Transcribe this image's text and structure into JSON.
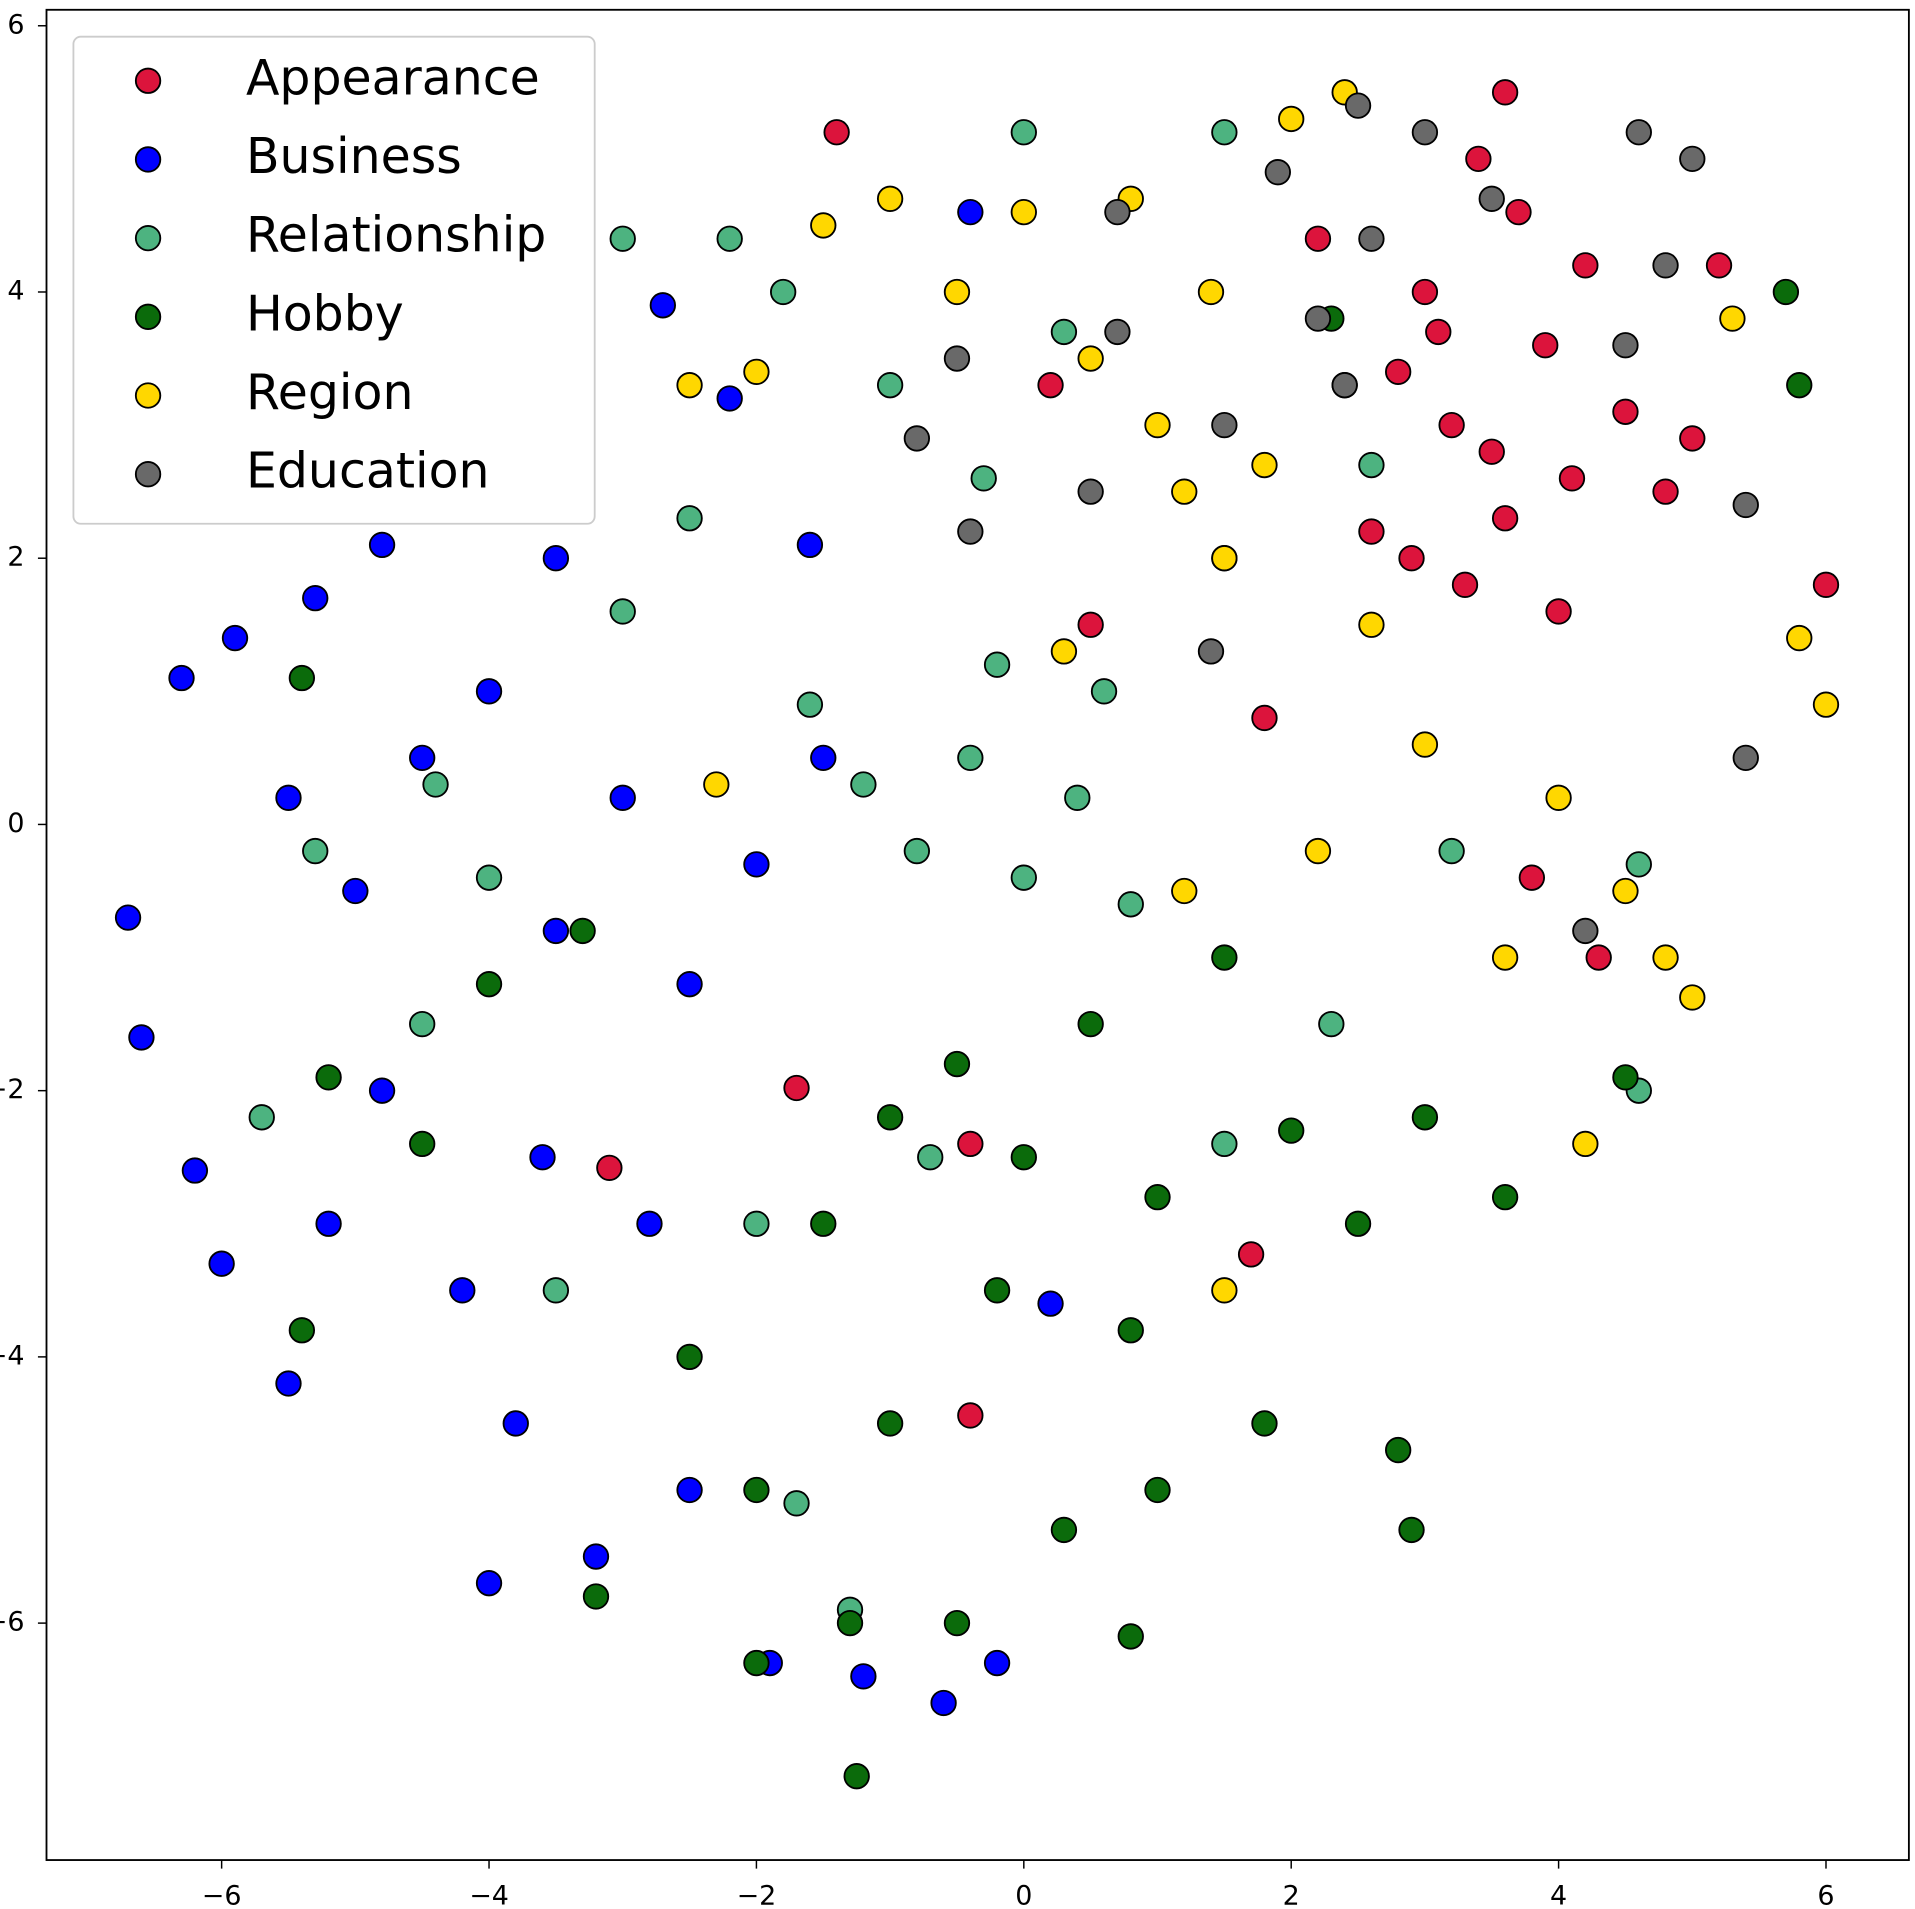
{
  "chart_data": {
    "type": "scatter",
    "xlim": [
      -7.31,
      6.62
    ],
    "ylim": [
      -7.78,
      6.12
    ],
    "xticks": [
      {
        "value": -6,
        "label": "−6"
      },
      {
        "value": -4,
        "label": "−4"
      },
      {
        "value": -2,
        "label": "−2"
      },
      0,
      2,
      4,
      6
    ],
    "yticks": [
      {
        "value": -6,
        "label": "−6"
      },
      {
        "value": -4,
        "label": "−4"
      },
      {
        "value": -2,
        "label": "−2"
      },
      0,
      2,
      4,
      6
    ],
    "legend": "upper left",
    "series": [
      {
        "name": "Appearance",
        "color": "#dc143c",
        "x": [
          3.2,
          3.5,
          2.8,
          4.1,
          3.9,
          2.6,
          3.0,
          4.5,
          3.3,
          2.4,
          4.8,
          3.7,
          2.9,
          4.2,
          3.1,
          5.0,
          2.2,
          3.6,
          4.0,
          3.4,
          1.5,
          1.8,
          0.5,
          0.2,
          3.8,
          4.3,
          6.0,
          5.2,
          -1.7,
          -0.4,
          -3.1,
          -0.4,
          1.7,
          3.6,
          -1.4
        ],
        "y": [
          3.0,
          2.8,
          3.4,
          2.6,
          3.6,
          2.2,
          4.0,
          3.1,
          1.8,
          3.3,
          2.5,
          4.6,
          2.0,
          4.2,
          3.7,
          2.9,
          4.4,
          2.3,
          1.6,
          5.0,
          2.0,
          0.8,
          1.5,
          3.3,
          -0.4,
          -1.0,
          1.8,
          4.2,
          -1.98,
          -2.4,
          -2.58,
          -4.44,
          -3.23,
          5.5,
          5.2
        ]
      },
      {
        "name": "Business",
        "color": "#0000ff",
        "x": [
          -6.6,
          -6.7,
          -6.3,
          -5.9,
          -5.5,
          -5.0,
          -4.5,
          -4.0,
          -3.5,
          -3.0,
          -2.5,
          -2.0,
          -1.5,
          -4.8,
          -5.2,
          -4.2,
          -3.8,
          -3.2,
          -2.5,
          -4.0,
          -1.9,
          -1.2,
          -0.6,
          -0.2,
          -5.5,
          -6.0,
          -6.2,
          -2.7,
          -3.5,
          -4.8,
          -2.2,
          -1.6,
          -0.4,
          -3.6,
          -2.8,
          0.2,
          -5.3
        ],
        "y": [
          -1.6,
          -0.7,
          1.1,
          1.4,
          0.2,
          -0.5,
          0.5,
          1.0,
          -0.8,
          0.2,
          -1.2,
          -0.3,
          0.5,
          -2.0,
          -3.0,
          -3.5,
          -4.5,
          -5.5,
          -5.0,
          -5.7,
          -6.3,
          -6.4,
          -6.6,
          -6.3,
          -4.2,
          -3.3,
          -2.6,
          3.9,
          2.0,
          2.1,
          3.2,
          2.1,
          4.6,
          -2.5,
          -3.0,
          -3.6,
          1.7
        ]
      },
      {
        "name": "Relationship",
        "color": "#4db380",
        "x": [
          -1.2,
          -0.8,
          -0.4,
          0.0,
          0.4,
          0.8,
          -1.6,
          -0.2,
          0.6,
          -2.5,
          -3.0,
          -2.2,
          -1.8,
          -1.0,
          -0.3,
          0.3,
          1.5,
          0.0,
          -4.4,
          -4.0,
          -4.5,
          -5.3,
          -5.7,
          -3.5,
          -2.0,
          -1.7,
          1.5,
          2.3,
          3.2,
          4.6,
          4.6,
          2.6,
          -0.7,
          -1.3,
          -3.0
        ],
        "y": [
          0.3,
          -0.2,
          0.5,
          -0.4,
          0.2,
          -0.6,
          0.9,
          1.2,
          1.0,
          2.3,
          1.6,
          4.4,
          4.0,
          3.3,
          2.6,
          3.7,
          5.2,
          5.2,
          0.3,
          -0.4,
          -1.5,
          -0.2,
          -2.2,
          -3.5,
          -3.0,
          -5.1,
          -2.4,
          -1.5,
          -0.2,
          -0.3,
          -2.0,
          2.7,
          -2.5,
          -5.9,
          4.4
        ]
      },
      {
        "name": "Hobby",
        "color": "#0b6b0b",
        "x": [
          -0.5,
          0.0,
          -1.0,
          0.5,
          1.0,
          -1.5,
          -0.2,
          0.8,
          1.5,
          2.0,
          2.5,
          3.0,
          3.6,
          -2.5,
          -2.0,
          -1.0,
          0.3,
          1.0,
          1.8,
          2.8,
          -1.3,
          -0.5,
          0.8,
          -2.0,
          -3.2,
          -4.5,
          -5.2,
          -4.0,
          -3.3,
          -5.4,
          -1.25,
          2.9,
          5.7,
          5.8,
          2.3,
          4.5,
          -5.4
        ],
        "y": [
          -1.8,
          -2.5,
          -2.2,
          -1.5,
          -2.8,
          -3.0,
          -3.5,
          -3.8,
          -1.0,
          -2.3,
          -3.0,
          -2.2,
          -2.8,
          -4.0,
          -5.0,
          -4.5,
          -5.3,
          -5.0,
          -4.5,
          -4.7,
          -6.0,
          -6.0,
          -6.1,
          -6.3,
          -5.8,
          -2.4,
          -1.9,
          -1.2,
          -0.8,
          -3.8,
          -7.15,
          -5.3,
          4.0,
          3.3,
          3.8,
          -1.9,
          1.1
        ]
      },
      {
        "name": "Region",
        "color": "#ffd700",
        "x": [
          1.2,
          1.5,
          1.0,
          1.8,
          0.5,
          -0.5,
          0.0,
          0.8,
          1.4,
          -1.0,
          -1.5,
          -2.0,
          -2.5,
          2.0,
          2.4,
          2.6,
          3.0,
          4.0,
          4.5,
          5.0,
          6.0,
          5.8,
          5.3,
          1.2,
          2.2,
          3.6,
          4.8,
          1.5,
          4.2,
          0.3,
          -2.3
        ],
        "y": [
          2.5,
          2.0,
          3.0,
          2.7,
          3.5,
          4.0,
          4.6,
          4.7,
          4.0,
          4.7,
          4.5,
          3.4,
          3.3,
          5.3,
          5.5,
          1.5,
          0.6,
          0.2,
          -0.5,
          -1.3,
          0.9,
          1.4,
          3.8,
          -0.5,
          -0.2,
          -1.0,
          -1.0,
          -3.5,
          -2.4,
          1.3,
          0.3
        ]
      },
      {
        "name": "Education",
        "color": "#696969",
        "x": [
          2.4,
          2.6,
          3.0,
          3.5,
          2.2,
          4.5,
          4.8,
          5.0,
          4.6,
          2.5,
          1.9,
          0.7,
          0.7,
          -0.5,
          -0.4,
          0.5,
          1.4,
          5.4,
          5.4,
          4.2,
          -0.8,
          1.5
        ],
        "y": [
          3.3,
          4.4,
          5.2,
          4.7,
          3.8,
          3.6,
          4.2,
          5.0,
          5.2,
          5.4,
          4.9,
          4.6,
          3.7,
          3.5,
          2.2,
          2.5,
          1.3,
          0.5,
          2.4,
          -0.8,
          2.9,
          3.0
        ]
      }
    ]
  }
}
